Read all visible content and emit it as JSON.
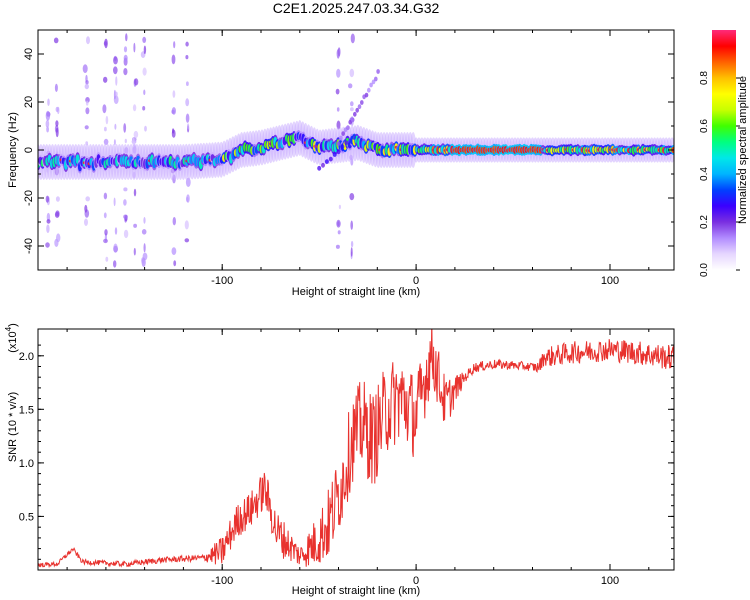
{
  "title": "C2E1.2025.247.03.34.G32",
  "colors": {
    "snr_line": "#e8322e",
    "ridge_core": "#e83030",
    "background": "#ffffff",
    "axis": "#000000"
  },
  "chart_data": [
    {
      "type": "heatmap",
      "name": "spectrogram",
      "xlabel": "Height of straight line (km)",
      "ylabel": "Frequency (Hz)",
      "xlim": [
        -195,
        133
      ],
      "ylim": [
        -50,
        50
      ],
      "xticks": [
        -100,
        0,
        100
      ],
      "yticks": [
        -40,
        -20,
        0,
        20,
        40
      ],
      "ridge": {
        "description_points_km_hz": [
          [
            -195,
            -5
          ],
          [
            -150,
            -5
          ],
          [
            -120,
            -5
          ],
          [
            -100,
            -4
          ],
          [
            -90,
            0
          ],
          [
            -80,
            1
          ],
          [
            -70,
            3
          ],
          [
            -60,
            5
          ],
          [
            -50,
            1
          ],
          [
            -40,
            2
          ],
          [
            -30,
            3
          ],
          [
            -20,
            0
          ],
          [
            -10,
            0
          ],
          [
            0,
            0
          ],
          [
            20,
            0
          ],
          [
            60,
            0
          ],
          [
            100,
            0
          ],
          [
            133,
            0
          ]
        ],
        "peak_region_km": [
          18,
          65
        ]
      },
      "colorbar": {
        "label": "Normalized spectral amplitude",
        "range": [
          0.0,
          1.0
        ],
        "ticks": [
          "0.0",
          "0.2",
          "0.4",
          "0.6",
          "0.8"
        ],
        "tick_values": [
          0.0,
          0.2,
          0.4,
          0.6,
          0.8
        ],
        "colormap": [
          "#ffffff",
          "#e6d6ff",
          "#b28cff",
          "#7a2fe0",
          "#3a00ff",
          "#0040ff",
          "#00b4ff",
          "#00e8e8",
          "#00ff80",
          "#40ff00",
          "#c8ff00",
          "#ffff00",
          "#ffc000",
          "#ff6000",
          "#ff0000",
          "#ff2a7a"
        ]
      }
    },
    {
      "type": "line",
      "name": "snr",
      "xlabel": "Height of straight line (km)",
      "ylabel": "SNR (10 * v/v)",
      "ylabel_multiplier_base": "(x10",
      "ylabel_multiplier_exp": "4",
      "ylabel_multiplier_close": ")",
      "xlim": [
        -195,
        133
      ],
      "ylim": [
        0,
        2.25
      ],
      "xticks": [
        -100,
        0,
        100
      ],
      "yticks": [
        0.5,
        1.0,
        1.5,
        2.0
      ],
      "ytick_labels": [
        "0.5",
        "1.0",
        "1.5",
        "2.0"
      ],
      "envelope_km_snr": [
        [
          -195,
          0.05
        ],
        [
          -185,
          0.06
        ],
        [
          -177,
          0.2
        ],
        [
          -172,
          0.08
        ],
        [
          -150,
          0.06
        ],
        [
          -130,
          0.1
        ],
        [
          -110,
          0.12
        ],
        [
          -100,
          0.2
        ],
        [
          -92,
          0.5
        ],
        [
          -85,
          0.6
        ],
        [
          -78,
          0.8
        ],
        [
          -72,
          0.4
        ],
        [
          -60,
          0.15
        ],
        [
          -52,
          0.3
        ],
        [
          -45,
          0.5
        ],
        [
          -38,
          0.9
        ],
        [
          -33,
          1.3
        ],
        [
          -28,
          1.45
        ],
        [
          -22,
          1.3
        ],
        [
          -15,
          1.6
        ],
        [
          -8,
          1.7
        ],
        [
          0,
          1.5
        ],
        [
          8,
          2.1
        ],
        [
          15,
          1.6
        ],
        [
          22,
          1.75
        ],
        [
          30,
          1.9
        ],
        [
          40,
          1.93
        ],
        [
          50,
          1.92
        ],
        [
          63,
          1.9
        ],
        [
          66,
          2.0
        ],
        [
          80,
          2.05
        ],
        [
          100,
          2.08
        ],
        [
          115,
          2.05
        ],
        [
          133,
          2.0
        ]
      ],
      "noise_amplitude_km": [
        [
          -195,
          0.02
        ],
        [
          -110,
          0.03
        ],
        [
          -100,
          0.15
        ],
        [
          -70,
          0.2
        ],
        [
          -60,
          0.1
        ],
        [
          -45,
          0.35
        ],
        [
          -25,
          0.45
        ],
        [
          0,
          0.4
        ],
        [
          15,
          0.25
        ],
        [
          25,
          0.05
        ],
        [
          60,
          0.04
        ],
        [
          70,
          0.1
        ],
        [
          133,
          0.12
        ]
      ]
    }
  ]
}
